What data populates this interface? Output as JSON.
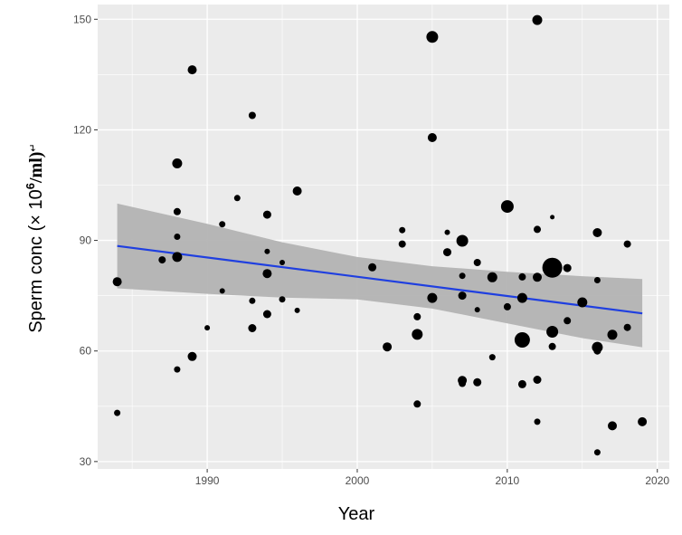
{
  "chart_data": {
    "type": "scatter",
    "xlabel": "Year",
    "ylabel_text": "Sperm conc (× 10",
    "ylabel_sup": "6",
    "ylabel_unit": "/ml)",
    "ylabel_mark": "↵",
    "xlim": [
      1982.7,
      2020.8
    ],
    "ylim": [
      28,
      154
    ],
    "x_ticks": [
      1990,
      2000,
      2010,
      2020
    ],
    "x_tick_labels": [
      "1990",
      "2000",
      "2010",
      "2020"
    ],
    "y_ticks": [
      30,
      60,
      90,
      120,
      150
    ],
    "y_tick_labels": [
      "30",
      "60",
      "90",
      "120",
      "150"
    ],
    "grid": true,
    "colors": {
      "panel": "#ebebeb",
      "grid": "#ffffff",
      "points": "#000000",
      "fit": "#1f3fe0",
      "band": "#b3b3b3"
    },
    "trend": {
      "x": [
        1984,
        2019
      ],
      "y": [
        88.5,
        70.2
      ]
    },
    "ci_band": {
      "x": [
        1984,
        1990,
        1995,
        2000,
        2005,
        2010,
        2015,
        2019
      ],
      "upper": [
        100,
        94.5,
        89.5,
        85.5,
        83,
        81.5,
        80.3,
        79.5
      ],
      "lower": [
        77,
        75.5,
        74.5,
        74,
        71.5,
        67.5,
        63.5,
        61
      ]
    },
    "points": [
      {
        "x": 1984.0,
        "y": 78.8,
        "s": 5
      },
      {
        "x": 1984.0,
        "y": 43.2,
        "s": 3.5
      },
      {
        "x": 1987.0,
        "y": 84.7,
        "s": 4
      },
      {
        "x": 1988.0,
        "y": 110.9,
        "s": 5.5
      },
      {
        "x": 1988.0,
        "y": 97.8,
        "s": 4
      },
      {
        "x": 1988.0,
        "y": 91.0,
        "s": 3.5
      },
      {
        "x": 1988.0,
        "y": 85.5,
        "s": 5.5
      },
      {
        "x": 1988.0,
        "y": 55.0,
        "s": 3.5
      },
      {
        "x": 1989.0,
        "y": 136.3,
        "s": 5
      },
      {
        "x": 1989.0,
        "y": 58.5,
        "s": 5
      },
      {
        "x": 1990.0,
        "y": 66.3,
        "s": 3
      },
      {
        "x": 1991.0,
        "y": 94.4,
        "s": 3.5
      },
      {
        "x": 1991.0,
        "y": 76.3,
        "s": 3
      },
      {
        "x": 1992.0,
        "y": 101.5,
        "s": 3.5
      },
      {
        "x": 1993.0,
        "y": 123.9,
        "s": 4
      },
      {
        "x": 1993.0,
        "y": 73.6,
        "s": 3.5
      },
      {
        "x": 1993.0,
        "y": 66.2,
        "s": 4.5
      },
      {
        "x": 1994.0,
        "y": 97.0,
        "s": 4.5
      },
      {
        "x": 1994.0,
        "y": 87.0,
        "s": 3
      },
      {
        "x": 1994.0,
        "y": 81.0,
        "s": 5
      },
      {
        "x": 1994.0,
        "y": 70.0,
        "s": 4.5
      },
      {
        "x": 1995.0,
        "y": 84.0,
        "s": 3
      },
      {
        "x": 1995.0,
        "y": 74.0,
        "s": 3.5
      },
      {
        "x": 1996.0,
        "y": 103.4,
        "s": 5
      },
      {
        "x": 1996.0,
        "y": 71.0,
        "s": 3
      },
      {
        "x": 2001.0,
        "y": 82.7,
        "s": 4.5
      },
      {
        "x": 2002.0,
        "y": 61.1,
        "s": 5
      },
      {
        "x": 2003.0,
        "y": 92.8,
        "s": 3.5
      },
      {
        "x": 2003.0,
        "y": 89.0,
        "s": 4
      },
      {
        "x": 2004.0,
        "y": 69.3,
        "s": 4
      },
      {
        "x": 2004.0,
        "y": 64.5,
        "s": 6
      },
      {
        "x": 2004.0,
        "y": 45.6,
        "s": 4
      },
      {
        "x": 2005.0,
        "y": 145.2,
        "s": 6.5
      },
      {
        "x": 2005.0,
        "y": 117.9,
        "s": 5
      },
      {
        "x": 2005.0,
        "y": 74.4,
        "s": 5.5
      },
      {
        "x": 2006.0,
        "y": 92.2,
        "s": 3
      },
      {
        "x": 2006.0,
        "y": 86.8,
        "s": 4.5
      },
      {
        "x": 2007.0,
        "y": 89.9,
        "s": 6.5
      },
      {
        "x": 2007.0,
        "y": 80.4,
        "s": 3.5
      },
      {
        "x": 2007.0,
        "y": 75.0,
        "s": 4.5
      },
      {
        "x": 2007.0,
        "y": 52.0,
        "s": 5
      },
      {
        "x": 2007.0,
        "y": 51.2,
        "s": 4
      },
      {
        "x": 2008.0,
        "y": 84.0,
        "s": 4
      },
      {
        "x": 2008.0,
        "y": 71.2,
        "s": 3
      },
      {
        "x": 2008.0,
        "y": 51.5,
        "s": 4.5
      },
      {
        "x": 2009.0,
        "y": 80.0,
        "s": 5.5
      },
      {
        "x": 2009.0,
        "y": 58.3,
        "s": 3.5
      },
      {
        "x": 2010.0,
        "y": 99.2,
        "s": 7
      },
      {
        "x": 2010.0,
        "y": 72.0,
        "s": 4
      },
      {
        "x": 2011.0,
        "y": 80.1,
        "s": 4
      },
      {
        "x": 2011.0,
        "y": 74.4,
        "s": 5.5
      },
      {
        "x": 2011.0,
        "y": 63.0,
        "s": 8.5
      },
      {
        "x": 2011.0,
        "y": 51.0,
        "s": 4.5
      },
      {
        "x": 2012.0,
        "y": 149.8,
        "s": 5.5
      },
      {
        "x": 2012.0,
        "y": 93.0,
        "s": 4
      },
      {
        "x": 2012.0,
        "y": 80.0,
        "s": 5
      },
      {
        "x": 2012.0,
        "y": 52.2,
        "s": 4.5
      },
      {
        "x": 2012.0,
        "y": 40.8,
        "s": 3.5
      },
      {
        "x": 2013.0,
        "y": 96.3,
        "s": 2.5
      },
      {
        "x": 2013.0,
        "y": 82.6,
        "s": 11
      },
      {
        "x": 2013.0,
        "y": 65.2,
        "s": 6.5
      },
      {
        "x": 2013.0,
        "y": 61.2,
        "s": 4
      },
      {
        "x": 2014.0,
        "y": 82.5,
        "s": 4.5
      },
      {
        "x": 2014.0,
        "y": 68.2,
        "s": 4
      },
      {
        "x": 2015.0,
        "y": 73.2,
        "s": 5.5
      },
      {
        "x": 2016.0,
        "y": 92.1,
        "s": 5
      },
      {
        "x": 2016.0,
        "y": 79.2,
        "s": 3.5
      },
      {
        "x": 2016.0,
        "y": 61.0,
        "s": 6
      },
      {
        "x": 2016.0,
        "y": 60.0,
        "s": 4
      },
      {
        "x": 2016.0,
        "y": 32.5,
        "s": 3.5
      },
      {
        "x": 2017.0,
        "y": 64.4,
        "s": 5.5
      },
      {
        "x": 2017.0,
        "y": 39.7,
        "s": 5
      },
      {
        "x": 2018.0,
        "y": 89.0,
        "s": 4
      },
      {
        "x": 2018.0,
        "y": 66.4,
        "s": 4
      },
      {
        "x": 2019.0,
        "y": 40.8,
        "s": 5
      }
    ]
  }
}
